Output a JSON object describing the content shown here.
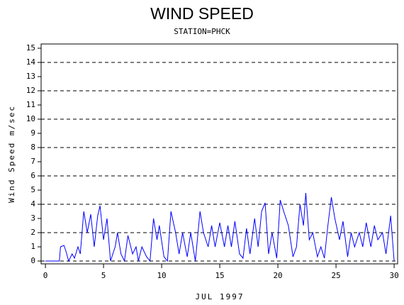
{
  "chart_data": {
    "type": "line",
    "title": "WIND SPEED",
    "subtitle": "STATION=PHCK",
    "x_label": "JUL 1997",
    "y_label": "Wind Speed m/sec",
    "x": [
      0,
      1.2,
      1.3,
      1.6,
      1.8,
      2,
      2.3,
      2.5,
      2.8,
      3,
      3.3,
      3.6,
      3.9,
      4.2,
      4.5,
      4.7,
      5,
      5.3,
      5.6,
      6,
      6.2,
      6.5,
      6.8,
      7.1,
      7.5,
      7.8,
      8,
      8.3,
      8.7,
      9,
      9.3,
      9.6,
      9.8,
      10.2,
      10.5,
      10.8,
      11.2,
      11.5,
      11.8,
      12.2,
      12.5,
      12.9,
      13.3,
      13.6,
      14,
      14.3,
      14.6,
      15,
      15.4,
      15.7,
      16,
      16.3,
      16.7,
      17,
      17.3,
      17.6,
      18,
      18.3,
      18.6,
      18.9,
      19.2,
      19.5,
      19.9,
      20.2,
      20.5,
      20.9,
      21.3,
      21.6,
      21.9,
      22.2,
      22.4,
      22.7,
      23,
      23.4,
      23.7,
      24,
      24.3,
      24.6,
      24.9,
      25.3,
      25.6,
      26,
      26.3,
      26.6,
      27,
      27.3,
      27.6,
      28,
      28.3,
      28.6,
      29,
      29.3,
      29.7,
      30
    ],
    "series": [
      {
        "name": "Wind Speed",
        "color": "#0000ff",
        "values": [
          0,
          0,
          1,
          1.1,
          0.6,
          0,
          0.5,
          0.2,
          1,
          0.5,
          3.5,
          2,
          3.3,
          1,
          3.2,
          3.9,
          1.5,
          3,
          0,
          1,
          2,
          0.5,
          0,
          1.8,
          0.5,
          1,
          0,
          1,
          0.3,
          0,
          3,
          1.5,
          2.5,
          0.3,
          0,
          3.5,
          2,
          0.5,
          2,
          0.3,
          2,
          0,
          3.5,
          2,
          1,
          2.5,
          1,
          2.7,
          1,
          2.5,
          1,
          2.8,
          0.5,
          0.2,
          2.3,
          0.5,
          3,
          1,
          3.5,
          4.1,
          0.5,
          2,
          0.2,
          4.3,
          3.5,
          2.5,
          0.3,
          1,
          4,
          2.5,
          4.8,
          1.5,
          2,
          0.3,
          1,
          0.2,
          2.5,
          4.5,
          3,
          1.5,
          2.8,
          0.3,
          2,
          1,
          2,
          1,
          2.7,
          1,
          2.5,
          1.5,
          2,
          0.5,
          3.2,
          0
        ]
      }
    ],
    "xlim": [
      -0.37,
      30.3
    ],
    "ylim": [
      -0.2,
      15.3
    ],
    "xticks": [
      0,
      5,
      10,
      15,
      20,
      25,
      30
    ],
    "yticks": [
      0,
      1,
      2,
      3,
      4,
      5,
      6,
      7,
      8,
      9,
      10,
      11,
      12,
      13,
      14,
      15
    ],
    "gridlines": [
      0,
      2,
      4,
      6,
      8,
      10,
      12,
      14
    ]
  }
}
